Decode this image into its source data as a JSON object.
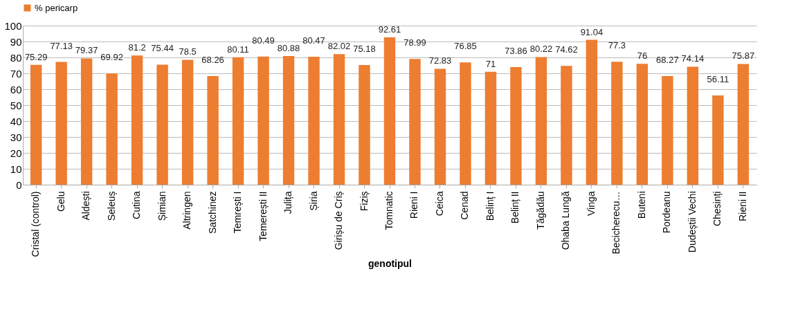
{
  "chart_data": {
    "type": "bar",
    "xlabel": "genotipul",
    "categories": [
      "Cristal (control)",
      "Gelu",
      "Aldești",
      "Seleuș",
      "Cutina",
      "Șimian",
      "Altringen",
      "Satchinez",
      "Temrești I",
      "Temerești II",
      "Julița",
      "Șiria",
      "Girișu de Criș",
      "Fiziș",
      "Tomnatic",
      "Rieni I",
      "Ceica",
      "Cenad",
      "Belinț I",
      "Belinț II",
      "Tăgădău",
      "Ohaba Lungă",
      "Vinga",
      "Becicherecu…",
      "Buteni",
      "Pordeanu",
      "Dudeștii Vechi",
      "Chesinți",
      "Rieni II"
    ],
    "series": [
      {
        "name": "% pericarp",
        "color": "#ed7d31",
        "values": [
          75.29,
          77.13,
          79.37,
          69.92,
          81.2,
          75.44,
          78.5,
          68.26,
          80.11,
          80.49,
          80.88,
          80.47,
          82.02,
          75.18,
          92.61,
          78.99,
          72.83,
          76.85,
          71,
          73.86,
          80.22,
          74.62,
          91.04,
          77.3,
          76,
          68.27,
          74.14,
          56.11,
          75.87
        ]
      }
    ],
    "ylim": [
      0,
      100
    ],
    "yticks": [
      0,
      10,
      20,
      30,
      40,
      50,
      60,
      70,
      80,
      90,
      100
    ],
    "grid": "y",
    "legend": "top left",
    "data_labels": true
  }
}
